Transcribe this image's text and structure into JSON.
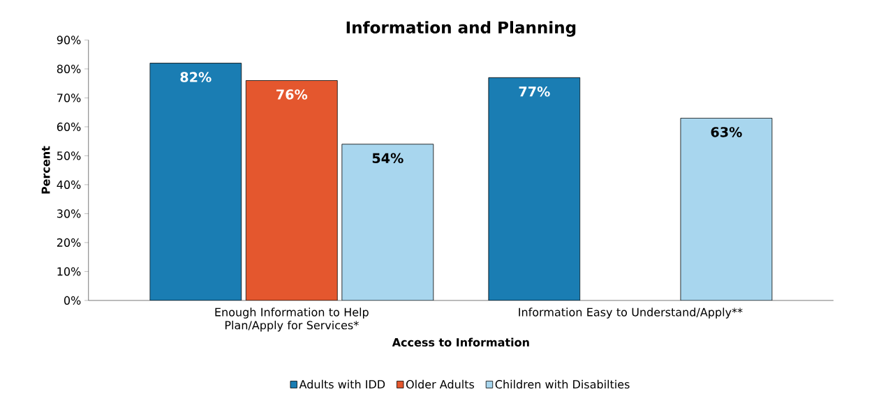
{
  "chart_data": {
    "type": "bar",
    "title": "Information and Planning",
    "xlabel": "Access to Information",
    "ylabel": "Percent",
    "categories": [
      "Enough Information to Help Plan/Apply for Services*",
      "Information Easy to Understand/Apply**"
    ],
    "series": [
      {
        "name": "Adults with IDD",
        "color": "#1a7db3",
        "values": [
          82,
          77
        ],
        "value_labels": [
          "82%",
          "77%"
        ]
      },
      {
        "name": "Older Adults",
        "color": "#e4572e",
        "values": [
          76,
          null
        ],
        "value_labels": [
          "76%",
          null
        ]
      },
      {
        "name": "Children with Disabilties",
        "color": "#a8d6ee",
        "values": [
          54,
          63
        ],
        "value_labels": [
          "54%",
          "63%"
        ]
      }
    ],
    "ylim": [
      0,
      90
    ],
    "yticks": [
      {
        "value": 0,
        "label": "0%"
      },
      {
        "value": 10,
        "label": "10%"
      },
      {
        "value": 20,
        "label": "20%"
      },
      {
        "value": 30,
        "label": "30%"
      },
      {
        "value": 40,
        "label": "40%"
      },
      {
        "value": 50,
        "label": "50%"
      },
      {
        "value": 60,
        "label": "60%"
      },
      {
        "value": 70,
        "label": "70%"
      },
      {
        "value": 80,
        "label": "80%"
      },
      {
        "value": 90,
        "label": "90%"
      }
    ],
    "legend": "bottom",
    "grid": false
  }
}
